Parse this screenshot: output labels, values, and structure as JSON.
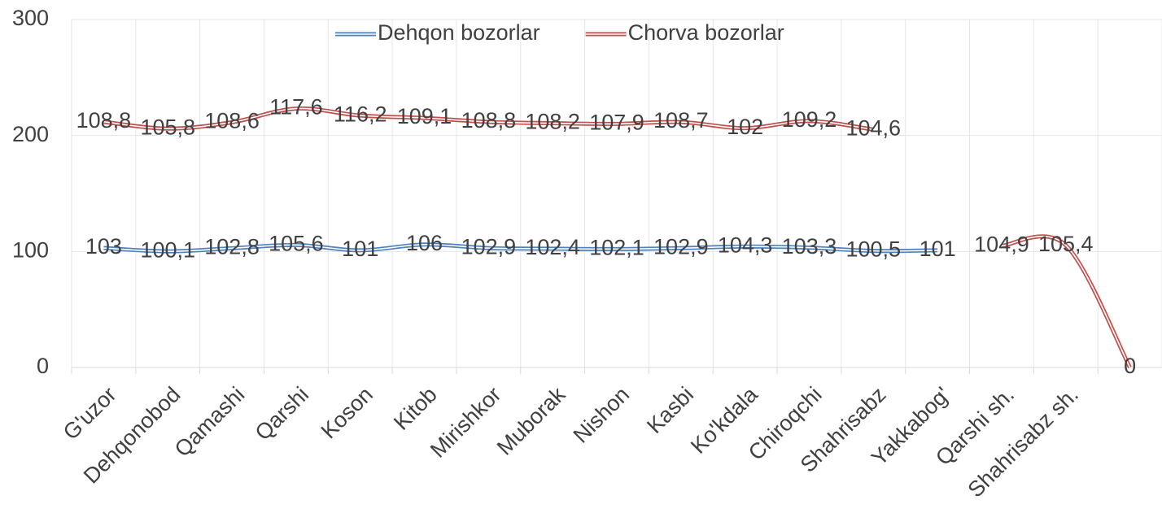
{
  "chart_data": {
    "type": "line",
    "stacked": true,
    "categories": [
      "G'uzor",
      "Dehqonobod",
      "Qamashi",
      "Qarshi",
      "Koson",
      "Kitob",
      "Mirishkor",
      "Muborak",
      "Nishon",
      "Kasbi",
      "Ko'kdala",
      "Chiroqchi",
      "Shahrisabz",
      "Yakkabog'",
      "Qarshi sh.",
      "Shahrisabz sh.",
      null
    ],
    "series": [
      {
        "name": "Dehqon bozorlar",
        "color": "#4f81bd",
        "values": [
          103,
          100.1,
          102.8,
          105.6,
          101,
          106,
          102.9,
          102.4,
          102.1,
          102.9,
          104.3,
          103.3,
          100.5,
          101,
          null,
          null,
          null
        ],
        "value_labels": [
          "103",
          "100,1",
          "102,8",
          "105,6",
          "101",
          "106",
          "102,9",
          "102,4",
          "102,1",
          "102,9",
          "104,3",
          "103,3",
          "100,5",
          "101",
          null,
          null,
          null
        ]
      },
      {
        "name": "Chorva bozorlar",
        "color": "#c0504d",
        "values": [
          108.8,
          105.8,
          108.6,
          117.6,
          116.2,
          109.1,
          108.8,
          108.2,
          107.9,
          108.7,
          102,
          109.2,
          104.6,
          null,
          104.9,
          105.4,
          0
        ],
        "value_labels": [
          "108,8",
          "105,8",
          "108,6",
          "117,6",
          "116,2",
          "109,1",
          "108,8",
          "108,2",
          "107,9",
          "108,7",
          "102",
          "109,2",
          "104,6",
          null,
          "104,9",
          "105,4",
          "0"
        ]
      }
    ],
    "ylim": [
      0,
      300
    ],
    "yticks": [
      0,
      100,
      200,
      300
    ],
    "grid": true,
    "legend": "top"
  }
}
